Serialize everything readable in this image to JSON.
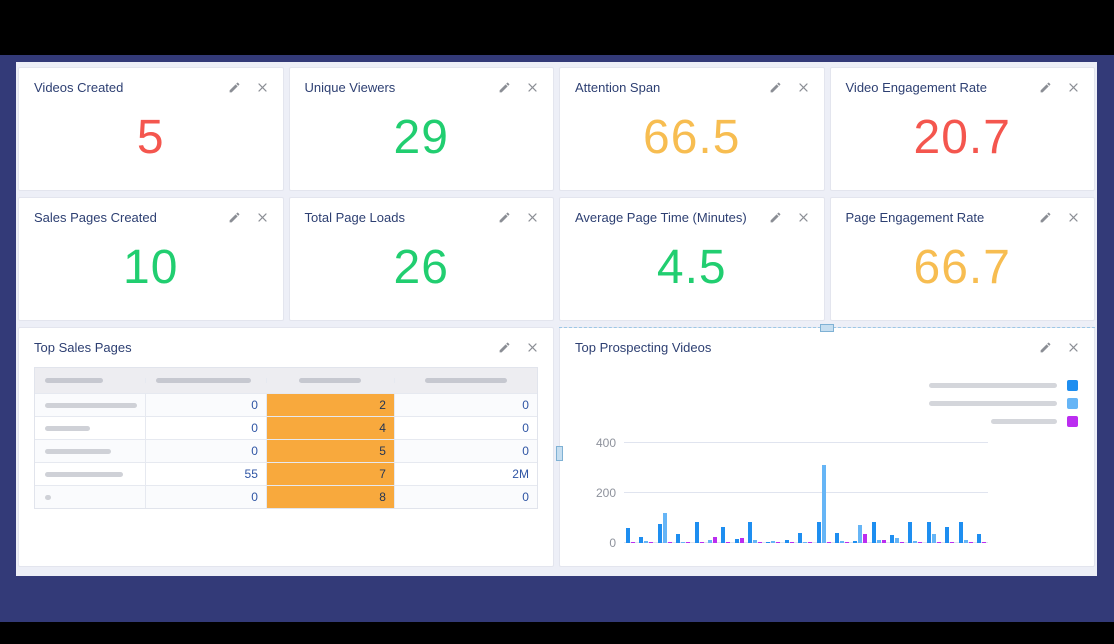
{
  "colors": {
    "red": "#f4564e",
    "green": "#21ce70",
    "amber": "#f7bd51",
    "table_highlight": "#f8a93d",
    "title_text": "#2d3f72",
    "bar_series": [
      "#1e8ef0",
      "#66b5f6",
      "#bb2df0"
    ]
  },
  "icons": {
    "edit": "pencil-icon",
    "close": "close-icon"
  },
  "stat_cards": [
    {
      "title": "Videos Created",
      "value": "5",
      "color_key": "red"
    },
    {
      "title": "Unique Viewers",
      "value": "29",
      "color_key": "green"
    },
    {
      "title": "Attention Span",
      "value": "66.5",
      "color_key": "amber"
    },
    {
      "title": "Video Engagement Rate",
      "value": "20.7",
      "color_key": "red"
    },
    {
      "title": "Sales Pages Created",
      "value": "10",
      "color_key": "green"
    },
    {
      "title": "Total Page Loads",
      "value": "26",
      "color_key": "green"
    },
    {
      "title": "Average Page Time (Minutes)",
      "value": "4.5",
      "color_key": "green"
    },
    {
      "title": "Page Engagement Rate",
      "value": "66.7",
      "color_key": "amber"
    }
  ],
  "table_card": {
    "title": "Top Sales Pages",
    "header_placeholder_widths": [
      58,
      95,
      62,
      82
    ],
    "highlight_column_index": 2,
    "rows": [
      {
        "label_placeholder_width": 92,
        "cells": [
          "0",
          "2",
          "0"
        ]
      },
      {
        "label_placeholder_width": 45,
        "cells": [
          "0",
          "4",
          "0"
        ]
      },
      {
        "label_placeholder_width": 66,
        "cells": [
          "0",
          "5",
          "0"
        ]
      },
      {
        "label_placeholder_width": 78,
        "cells": [
          "55",
          "7",
          "2M"
        ]
      },
      {
        "label_placeholder_width": 6,
        "cells": [
          "0",
          "8",
          "0"
        ]
      }
    ]
  },
  "chart_card": {
    "title": "Top Prospecting Videos",
    "selected": true
  },
  "chart_data": {
    "type": "bar",
    "title": "Top Prospecting Videos",
    "xlabel": "",
    "ylabel": "",
    "ylim": [
      0,
      460
    ],
    "yticks": [
      0,
      200,
      400
    ],
    "grid": true,
    "categories_redacted": true,
    "legend": {
      "position": "top-right",
      "labels_redacted": true,
      "items": [
        {
          "label": "",
          "color": "#1e8ef0",
          "placeholder_width": 128
        },
        {
          "label": "",
          "color": "#66b5f6",
          "placeholder_width": 128
        },
        {
          "label": "",
          "color": "#bb2df0",
          "placeholder_width": 66
        }
      ]
    },
    "series": [
      {
        "name": "series_1",
        "color": "#1e8ef0",
        "values": [
          60,
          25,
          75,
          35,
          85,
          0,
          62,
          15,
          85,
          5,
          12,
          38,
          85,
          38,
          8,
          85,
          30,
          85,
          85,
          65,
          85,
          35
        ]
      },
      {
        "name": "series_2",
        "color": "#66b5f6",
        "values": [
          0,
          8,
          120,
          5,
          0,
          12,
          0,
          0,
          10,
          6,
          0,
          5,
          310,
          8,
          70,
          12,
          18,
          8,
          35,
          0,
          10,
          0
        ]
      },
      {
        "name": "series_3",
        "color": "#bb2df0",
        "values": [
          5,
          4,
          5,
          4,
          5,
          25,
          4,
          20,
          4,
          4,
          4,
          4,
          5,
          4,
          35,
          12,
          4,
          4,
          4,
          5,
          4,
          4
        ]
      }
    ]
  }
}
